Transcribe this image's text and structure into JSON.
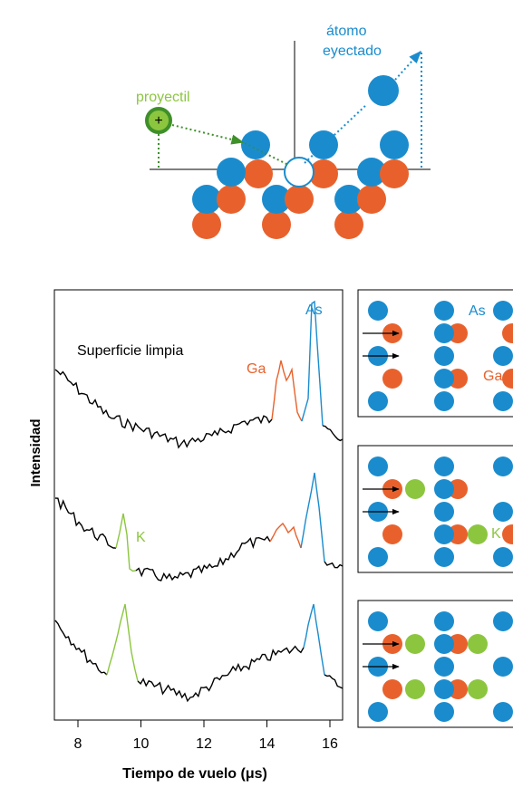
{
  "schematic": {
    "ejected_label": [
      "átomo",
      "eyectado"
    ],
    "projectile_label": "proyectil",
    "projectile_sign": "+"
  },
  "spectrum": {
    "trace_label": "Superficie limpia",
    "peak_labels": {
      "as": "As",
      "ga": "Ga",
      "k": "K"
    },
    "y_axis_label": "Intensidad",
    "x_axis_label": "Tiempo de vuelo (μs)",
    "x_ticks": [
      8,
      10,
      12,
      14,
      16
    ]
  },
  "panels": [
    {
      "labels": [
        "As",
        "Ga"
      ]
    },
    {
      "labels": [
        "K"
      ]
    }
  ]
}
